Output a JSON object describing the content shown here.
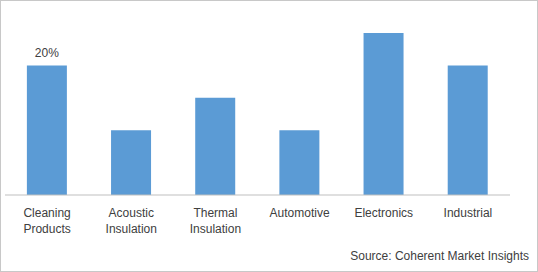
{
  "chart_data": {
    "type": "bar",
    "categories": [
      "Cleaning Products",
      "Acoustic Insulation",
      "Thermal Insulation",
      "Automotive",
      "Electronics",
      "Industrial"
    ],
    "values": [
      20,
      10,
      15,
      10,
      25,
      20
    ],
    "value_labels": [
      "20%",
      null,
      null,
      null,
      null,
      null
    ],
    "color": "#5b9bd5",
    "ylim": [
      0,
      25
    ],
    "tick_labels": "x",
    "source": "Source: Coherent Market Insights"
  }
}
